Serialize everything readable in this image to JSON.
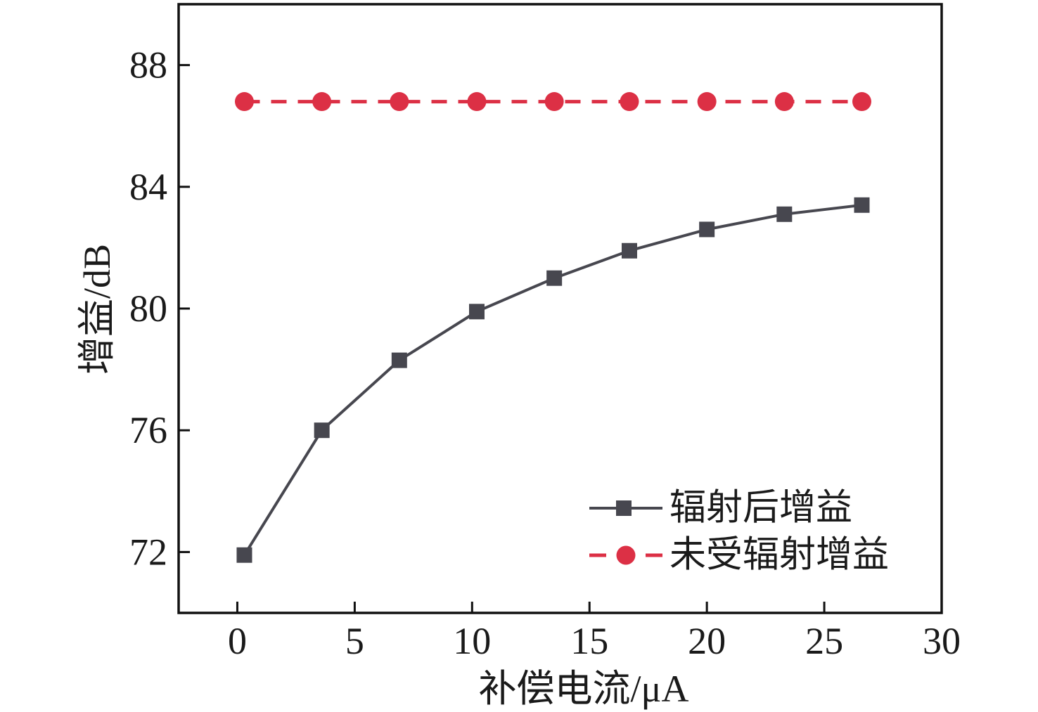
{
  "figure": {
    "background": "#ffffff",
    "axis_color": "#111111",
    "text_color": "#1a1a1a"
  },
  "chart_data": {
    "type": "line",
    "title": "",
    "xlabel": "补偿电流/μA",
    "ylabel": "增益/dB",
    "xlim": [
      -2.5,
      30
    ],
    "ylim": [
      70,
      90
    ],
    "xticks": [
      0,
      5,
      10,
      15,
      20,
      25,
      30
    ],
    "yticks": [
      72,
      76,
      80,
      84,
      88
    ],
    "grid": false,
    "legend_position": "lower right",
    "x": [
      0.3,
      3.6,
      6.9,
      10.2,
      13.5,
      16.7,
      20.0,
      23.3,
      26.6
    ],
    "series": [
      {
        "name": "辐射后增益",
        "values": [
          71.9,
          76.0,
          78.3,
          79.9,
          81.0,
          81.9,
          82.6,
          83.1,
          83.4
        ],
        "color": "#47474f",
        "line_style": "solid",
        "line_width": 4,
        "marker": "square",
        "marker_size": 22
      },
      {
        "name": "未受辐射增益",
        "values": [
          86.8,
          86.8,
          86.8,
          86.8,
          86.8,
          86.8,
          86.8,
          86.8,
          86.8
        ],
        "color": "#dc3045",
        "line_style": "dashed",
        "line_width": 5,
        "marker": "circle",
        "marker_size": 27
      }
    ]
  }
}
